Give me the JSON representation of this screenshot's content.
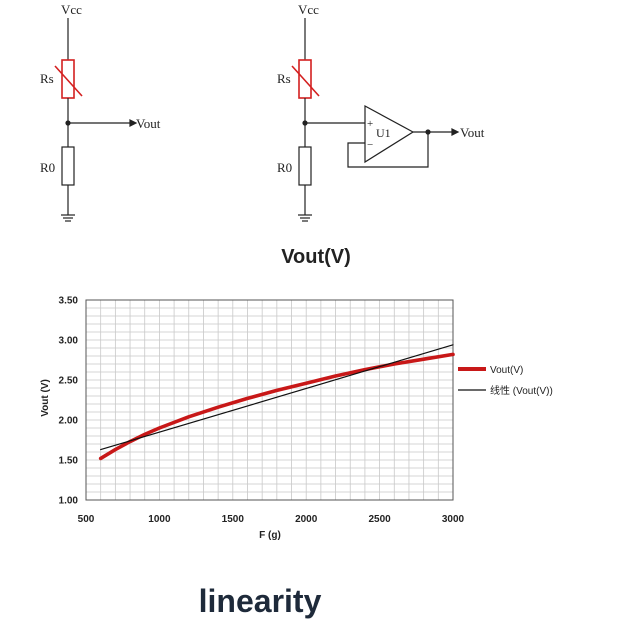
{
  "circuit_left": {
    "vcc": "Vcc",
    "rs": "Rs",
    "r0": "R0",
    "vout": "Vout"
  },
  "circuit_right": {
    "vcc": "Vcc",
    "rs": "Rs",
    "r0": "R0",
    "opamp": "U1",
    "plus": "+",
    "minus": "−",
    "vout": "Vout"
  },
  "colors": {
    "rs_resistor": "#d42020",
    "wire": "#222222",
    "vout_series": "#c81818",
    "linear_series": "#111111",
    "grid": "#c8c8c8"
  },
  "chart_data": {
    "type": "line",
    "title": "Vout(V)",
    "xlabel": "F (g)",
    "ylabel": "Vout (V)",
    "xlim": [
      500,
      3000
    ],
    "ylim": [
      1.0,
      3.5
    ],
    "x_ticks": [
      "500",
      "1000",
      "1500",
      "2000",
      "2500",
      "3000"
    ],
    "y_ticks": [
      "1.00",
      "1.50",
      "2.00",
      "2.50",
      "3.00",
      "3.50"
    ],
    "x_grid_step": 100,
    "y_grid_step": 0.1,
    "legend_position": "right",
    "series": [
      {
        "name": "Vout(V)",
        "x": [
          600,
          700,
          800,
          900,
          1000,
          1200,
          1400,
          1600,
          1800,
          2000,
          2200,
          2400,
          2600,
          2800,
          3000
        ],
        "values": [
          1.52,
          1.63,
          1.73,
          1.82,
          1.9,
          2.04,
          2.16,
          2.27,
          2.37,
          2.46,
          2.55,
          2.63,
          2.7,
          2.76,
          2.82
        ]
      },
      {
        "name": "线性 (Vout(V))",
        "x": [
          600,
          3000
        ],
        "values": [
          1.63,
          2.94
        ]
      }
    ]
  },
  "footer": {
    "caption": "linearity"
  }
}
